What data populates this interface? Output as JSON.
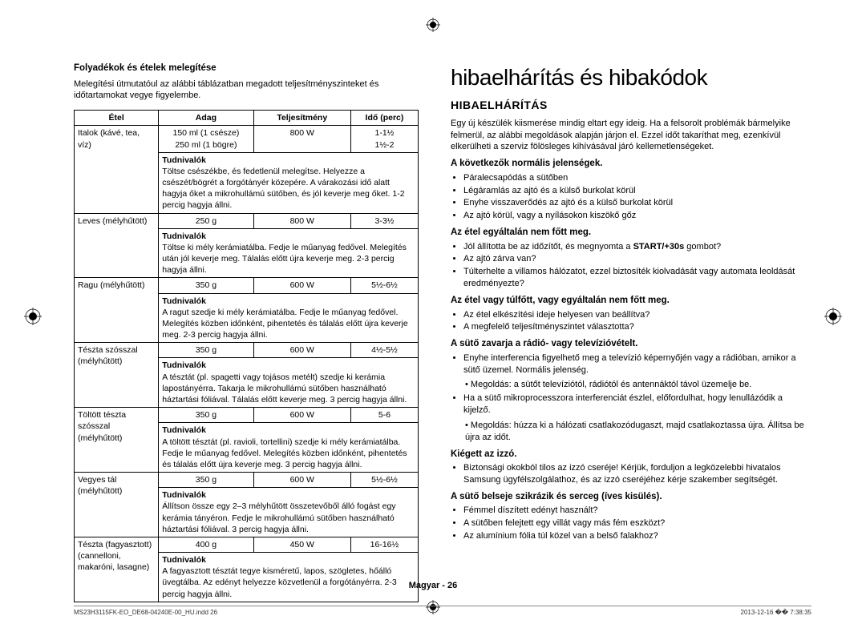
{
  "left": {
    "subtitle": "Folyadékok és ételek melegítése",
    "intro": "Melegítési útmutatóul az alábbi táblázatban megadott teljesítményszinteket és időtartamokat vegye figyelembe.",
    "headers": [
      "Étel",
      "Adag",
      "Teljesítmény",
      "Idő (perc)"
    ],
    "rows": [
      {
        "food": "Italok (kávé, tea, víz)",
        "adag": "150 ml (1 csésze)\n250 ml (1 bögre)",
        "telj": "800 W",
        "ido": "1-1½\n1½-2",
        "tud": "Töltse csészékbe, és fedetlenül melegítse. Helyezze a csészét/bögrét a forgótányér közepére. A várakozási idő alatt hagyja őket a mikrohullámú sütőben, és jól keverje meg őket. 1-2 percig hagyja állni."
      },
      {
        "food": "Leves (mélyhűtött)",
        "adag": "250 g",
        "telj": "800 W",
        "ido": "3-3½",
        "tud": "Töltse ki mély kerámiatálba. Fedje le műanyag fedővel. Melegítés után jól keverje meg. Tálalás előtt újra keverje meg. 2-3 percig hagyja állni."
      },
      {
        "food": "Ragu (mélyhűtött)",
        "adag": "350 g",
        "telj": "600 W",
        "ido": "5½-6½",
        "tud": "A ragut szedje ki mély kerámiatálba. Fedje le műanyag fedővel. Melegítés közben időnként, pihentetés és tálalás előtt újra keverje meg. 2-3 percig hagyja állni."
      },
      {
        "food": "Tészta szósszal (mélyhűtött)",
        "adag": "350 g",
        "telj": "600 W",
        "ido": "4½-5½",
        "tud": "A tésztát (pl. spagetti vagy tojásos metélt) szedje ki kerámia lapostányérra. Takarja le mikrohullámú sütőben használható háztartási fóliával. Tálalás előtt keverje meg. 3 percig hagyja állni."
      },
      {
        "food": "Töltött tészta szósszal (mélyhűtött)",
        "adag": "350 g",
        "telj": "600 W",
        "ido": "5-6",
        "tud": "A töltött tésztát (pl. ravioli, tortellini) szedje ki mély kerámiatálba. Fedje le műanyag fedővel. Melegítés közben időnként, pihentetés és tálalás előtt újra keverje meg. 3 percig hagyja állni."
      },
      {
        "food": "Vegyes tál (mélyhűtött)",
        "adag": "350 g",
        "telj": "600 W",
        "ido": "5½-6½",
        "tud": "Állítson össze egy 2–3 mélyhűtött összetevőből álló fogást egy kerámia tányéron. Fedje le mikrohullámú sütőben használható háztartási fóliával. 3 percig hagyja állni."
      },
      {
        "food": "Tészta (fagyasztott) (cannelloni, makaróni, lasagne)",
        "adag": "400 g",
        "telj": "450 W",
        "ido": "16-16½",
        "tud": "A fagyasztott tésztát tegye kisméretű, lapos, szögletes, hőálló üvegtálba. Az edényt helyezze közvetlenül a forgótányérra. 2-3 percig hagyja állni."
      }
    ],
    "tudnivalok_label": "Tudnivalók"
  },
  "right": {
    "title": "hibaelhárítás és hibakódok",
    "subtitle": "HIBAELHÁRÍTÁS",
    "intro": "Egy új készülék kiismerése mindig eltart egy ideig. Ha a felsorolt problémák bármelyike felmerül, az alábbi megoldások alapján járjon el. Ezzel időt takaríthat meg, ezenkívül elkerülheti a szerviz fölösleges kihívásával járó kellemetlenségeket.",
    "sections": [
      {
        "heading": "A következők normális jelenségek.",
        "bullets": [
          "Páralecsapódás a sütőben",
          "Légáramlás az ajtó és a külső burkolat körül",
          "Enyhe visszaverődés az ajtó és a külső burkolat körül",
          "Az ajtó körül, vagy a nyílásokon kiszökő gőz"
        ]
      },
      {
        "heading": "Az étel egyáltalán nem főtt meg.",
        "bullets": [
          "Jól állította be az időzítőt, és megnyomta a START/+30s gombot?",
          "Az ajtó zárva van?",
          "Túlterhelte a villamos hálózatot, ezzel biztosíték kiolvadását vagy automata leoldását eredményezte?"
        ]
      },
      {
        "heading": "Az étel vagy túlfőtt, vagy egyáltalán nem főtt meg.",
        "bullets": [
          "Az étel elkészítési ideje helyesen van beállítva?",
          "A megfelelő teljesítményszintet választotta?"
        ]
      },
      {
        "heading": "A sütő zavarja a rádió- vagy televízióvételt.",
        "bullets": [
          "Enyhe interferencia figyelhető meg a televízió képernyőjén vagy a rádióban, amikor a sütő üzemel. Normális jelenség."
        ],
        "sub1": "Megoldás: a sütőt televíziótól, rádiótól és antennáktól távol üzemelje be.",
        "bullet2": "Ha a sütő mikroprocesszora interferenciát észlel, előfordulhat, hogy lenullázódik a kijelző.",
        "sub2": "Megoldás: húzza ki a hálózati csatlakozódugaszt, majd csatlakoztassa újra. Állítsa be újra az időt."
      },
      {
        "heading": "Kiégett az izzó.",
        "bullets": [
          "Biztonsági okokból tilos az izzó cseréje! Kérjük, forduljon a legközelebbi hivatalos Samsung ügyfélszolgálathoz, és az izzó cseréjéhez kérje szakember segítségét."
        ]
      },
      {
        "heading": "A sütő belseje szikrázik és serceg (íves kisülés).",
        "bullets": [
          "Fémmel díszített edényt használt?",
          "A sütőben felejtett egy villát vagy más fém eszközt?",
          "Az alumínium fólia túl közel van a belső falakhoz?"
        ]
      }
    ]
  },
  "footer": {
    "lang": "Magyar",
    "page": "26"
  },
  "printer": {
    "left": "MS23H3115FK-EO_DE68-04240E-00_HU.indd   26",
    "right": "2013-12-16   �� 7:38:35"
  }
}
